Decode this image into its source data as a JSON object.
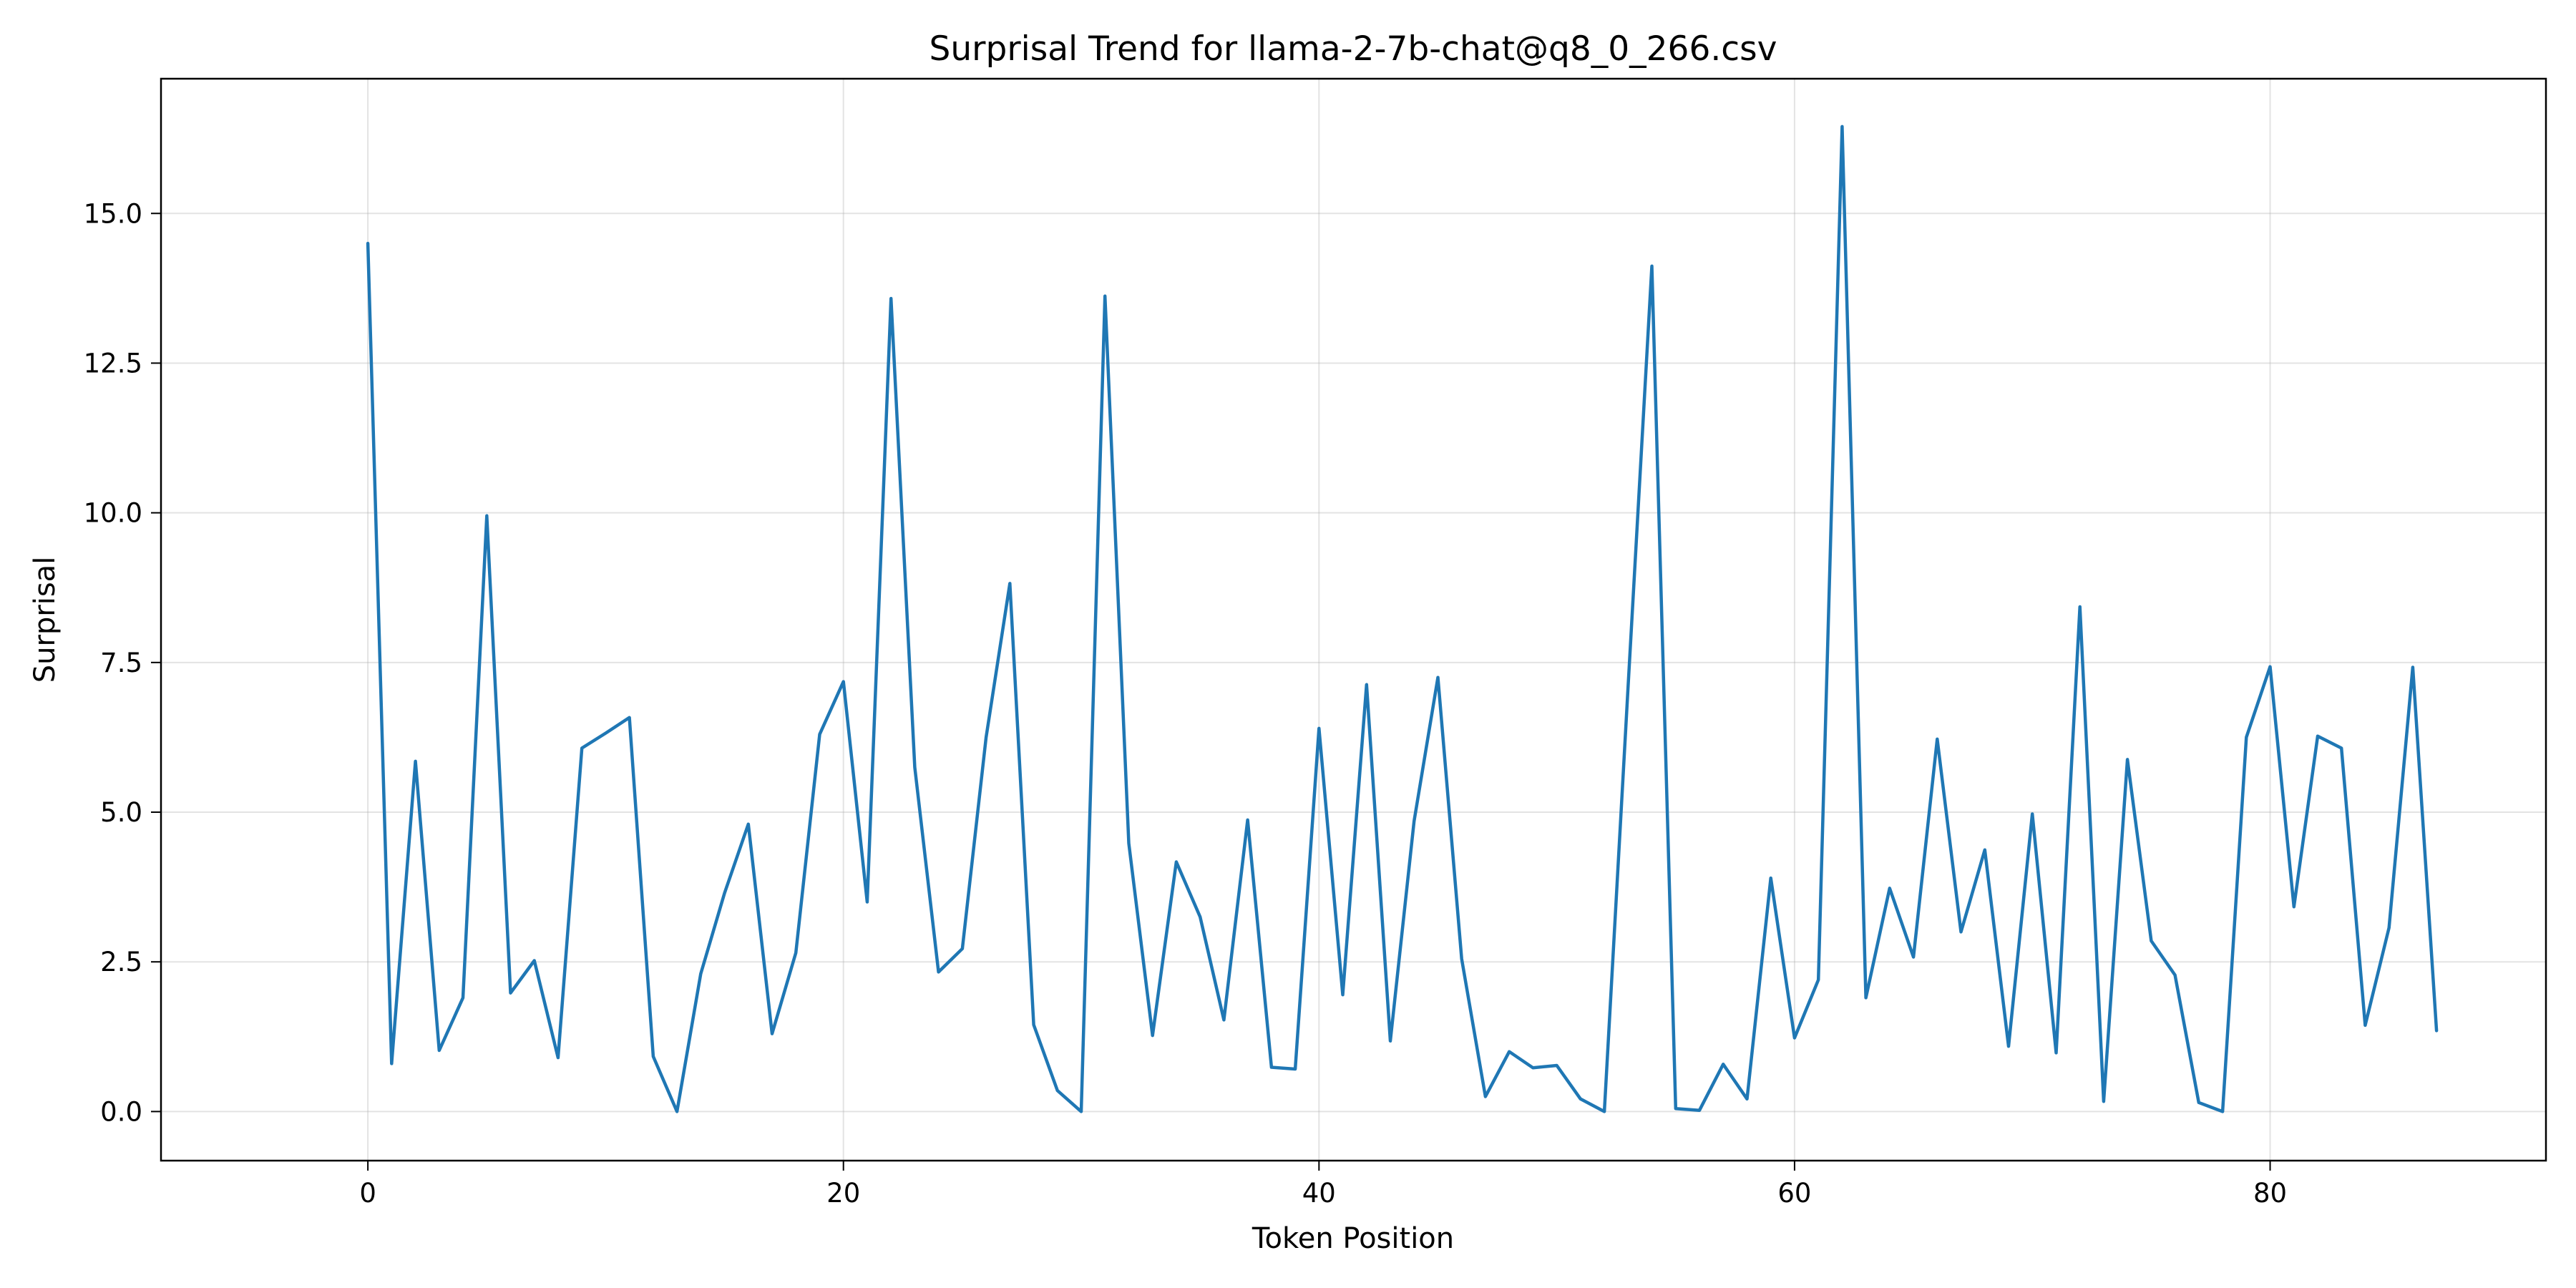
{
  "chart_data": {
    "type": "line",
    "title": "Surprisal Trend for llama-2-7b-chat@q8_0_266.csv",
    "xlabel": "Token Position",
    "ylabel": "Surprisal",
    "xlim": [
      -8.7,
      91.6
    ],
    "ylim": [
      -0.82,
      17.25
    ],
    "xticks": [
      0,
      20,
      40,
      60,
      80
    ],
    "yticks": [
      0.0,
      2.5,
      5.0,
      7.5,
      10.0,
      12.5,
      15.0
    ],
    "xtick_labels": [
      "0",
      "20",
      "40",
      "60",
      "80"
    ],
    "ytick_labels": [
      "0.0",
      "2.5",
      "5.0",
      "7.5",
      "10.0",
      "12.5",
      "15.0"
    ],
    "grid": true,
    "line_color": "#1f77b4",
    "series": [
      {
        "values": [
          14.5,
          0.8,
          5.85,
          1.02,
          1.9,
          9.95,
          1.98,
          2.52,
          0.9,
          6.07,
          6.32,
          6.58,
          0.92,
          0.0,
          2.3,
          3.65,
          4.8,
          1.3,
          2.65,
          6.3,
          7.18,
          3.5,
          13.58,
          5.75,
          2.33,
          2.72,
          6.25,
          8.82,
          1.45,
          0.35,
          0.0,
          13.62,
          4.48,
          1.27,
          4.17,
          3.25,
          1.53,
          4.87,
          0.74,
          0.71,
          6.4,
          1.95,
          7.13,
          1.18,
          4.85,
          7.25,
          2.55,
          0.25,
          1.0,
          0.73,
          0.77,
          0.21,
          0.0,
          7.1,
          14.12,
          0.05,
          0.02,
          0.79,
          0.21,
          3.9,
          1.23,
          2.2,
          16.45,
          1.9,
          3.73,
          2.58,
          6.22,
          3.0,
          4.37,
          1.09,
          4.97,
          0.98,
          8.43,
          0.17,
          5.88,
          2.85,
          2.28,
          0.15,
          0.0,
          6.25,
          7.43,
          3.42,
          6.27,
          6.07,
          1.44,
          3.07,
          7.42,
          1.35
        ]
      }
    ]
  }
}
